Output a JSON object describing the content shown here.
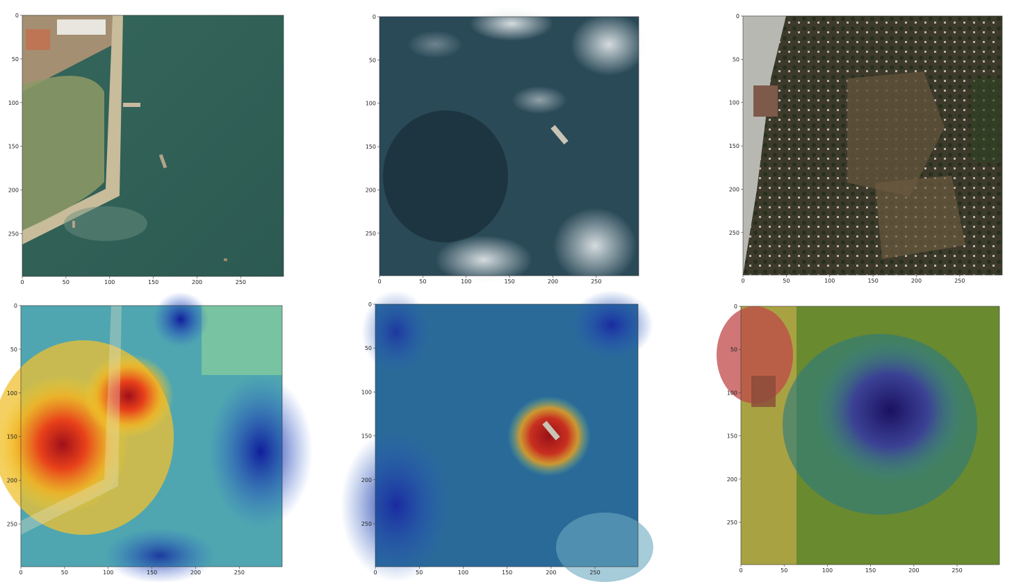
{
  "figure": {
    "x_ticks": [
      "0",
      "50",
      "100",
      "150",
      "200",
      "250"
    ],
    "y_ticks": [
      "0",
      "50",
      "100",
      "150",
      "200",
      "250"
    ],
    "x_tick_values": [
      0,
      50,
      100,
      150,
      200,
      250
    ],
    "y_tick_values": [
      0,
      50,
      100,
      150,
      200,
      250
    ],
    "axis_range": [
      0,
      299
    ]
  },
  "panels": [
    {
      "row": "top",
      "kind": "satellite-image",
      "scene": "harbor with breakwater and small boats"
    },
    {
      "row": "top",
      "kind": "satellite-image",
      "scene": "open sea with single ship and clouds"
    },
    {
      "row": "top",
      "kind": "satellite-image",
      "scene": "village with fields near shoreline"
    },
    {
      "row": "bottom",
      "kind": "heatmap-overlay",
      "scene": "harbor with heatmap overlay"
    },
    {
      "row": "bottom",
      "kind": "heatmap-overlay",
      "scene": "ship with heatmap overlay"
    },
    {
      "row": "bottom",
      "kind": "heatmap-overlay",
      "scene": "village with heatmap overlay"
    }
  ],
  "colors": {
    "sea_harbor": "#2f5e54",
    "sea_open": "#2a4754",
    "village_ground": "#4a4030",
    "heat_hot": "#a01010",
    "heat_cold": "#101e9a"
  }
}
